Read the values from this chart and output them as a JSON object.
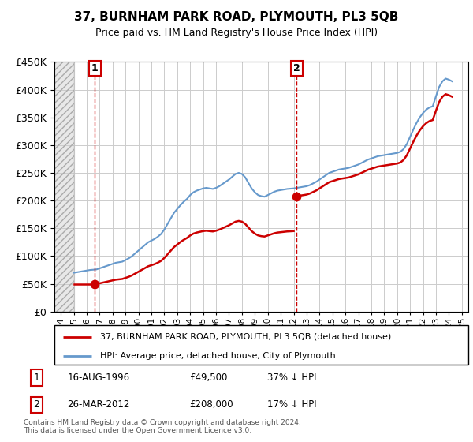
{
  "title": "37, BURNHAM PARK ROAD, PLYMOUTH, PL3 5QB",
  "subtitle": "Price paid vs. HM Land Registry's House Price Index (HPI)",
  "sale1_date": 1996.62,
  "sale1_price": 49500,
  "sale2_date": 2012.23,
  "sale2_price": 208000,
  "label1": "1",
  "label2": "2",
  "legend_line1": "37, BURNHAM PARK ROAD, PLYMOUTH, PL3 5QB (detached house)",
  "legend_line2": "HPI: Average price, detached house, City of Plymouth",
  "footnote": "Contains HM Land Registry data © Crown copyright and database right 2024.\nThis data is licensed under the Open Government Licence v3.0.",
  "hpi_color": "#6699cc",
  "sale_color": "#cc0000",
  "grid_color": "#cccccc",
  "ylim": [
    0,
    450000
  ],
  "xlim_start": 1993.5,
  "xlim_end": 2025.5,
  "hpi_years": [
    1995.0,
    1995.25,
    1995.5,
    1995.75,
    1996.0,
    1996.25,
    1996.5,
    1996.75,
    1997.0,
    1997.25,
    1997.5,
    1997.75,
    1998.0,
    1998.25,
    1998.5,
    1998.75,
    1999.0,
    1999.25,
    1999.5,
    1999.75,
    2000.0,
    2000.25,
    2000.5,
    2000.75,
    2001.0,
    2001.25,
    2001.5,
    2001.75,
    2002.0,
    2002.25,
    2002.5,
    2002.75,
    2003.0,
    2003.25,
    2003.5,
    2003.75,
    2004.0,
    2004.25,
    2004.5,
    2004.75,
    2005.0,
    2005.25,
    2005.5,
    2005.75,
    2006.0,
    2006.25,
    2006.5,
    2006.75,
    2007.0,
    2007.25,
    2007.5,
    2007.75,
    2008.0,
    2008.25,
    2008.5,
    2008.75,
    2009.0,
    2009.25,
    2009.5,
    2009.75,
    2010.0,
    2010.25,
    2010.5,
    2010.75,
    2011.0,
    2011.25,
    2011.5,
    2011.75,
    2012.0,
    2012.25,
    2012.5,
    2012.75,
    2013.0,
    2013.25,
    2013.5,
    2013.75,
    2014.0,
    2014.25,
    2014.5,
    2014.75,
    2015.0,
    2015.25,
    2015.5,
    2015.75,
    2016.0,
    2016.25,
    2016.5,
    2016.75,
    2017.0,
    2017.25,
    2017.5,
    2017.75,
    2018.0,
    2018.25,
    2018.5,
    2018.75,
    2019.0,
    2019.25,
    2019.5,
    2019.75,
    2020.0,
    2020.25,
    2020.5,
    2020.75,
    2021.0,
    2021.25,
    2021.5,
    2021.75,
    2022.0,
    2022.25,
    2022.5,
    2022.75,
    2023.0,
    2023.25,
    2023.5,
    2023.75,
    2024.0,
    2024.25
  ],
  "hpi_values": [
    70000,
    71000,
    72000,
    73000,
    74000,
    75000,
    75500,
    76000,
    78000,
    80000,
    82000,
    84000,
    86000,
    88000,
    89000,
    90000,
    93000,
    96000,
    100000,
    105000,
    110000,
    115000,
    120000,
    125000,
    128000,
    131000,
    135000,
    140000,
    148000,
    158000,
    168000,
    178000,
    185000,
    192000,
    198000,
    203000,
    210000,
    215000,
    218000,
    220000,
    222000,
    223000,
    222000,
    221000,
    223000,
    226000,
    230000,
    234000,
    238000,
    243000,
    248000,
    250000,
    248000,
    242000,
    232000,
    222000,
    215000,
    210000,
    208000,
    207000,
    210000,
    213000,
    216000,
    218000,
    219000,
    220000,
    221000,
    221500,
    222000,
    223000,
    224000,
    225000,
    226000,
    228000,
    231000,
    234000,
    238000,
    242000,
    246000,
    250000,
    252000,
    254000,
    256000,
    257000,
    258000,
    259000,
    261000,
    263000,
    265000,
    268000,
    271000,
    274000,
    276000,
    278000,
    280000,
    281000,
    282000,
    283000,
    284000,
    285000,
    286000,
    288000,
    293000,
    302000,
    315000,
    328000,
    340000,
    350000,
    358000,
    364000,
    368000,
    370000,
    388000,
    405000,
    415000,
    420000,
    418000,
    415000
  ]
}
